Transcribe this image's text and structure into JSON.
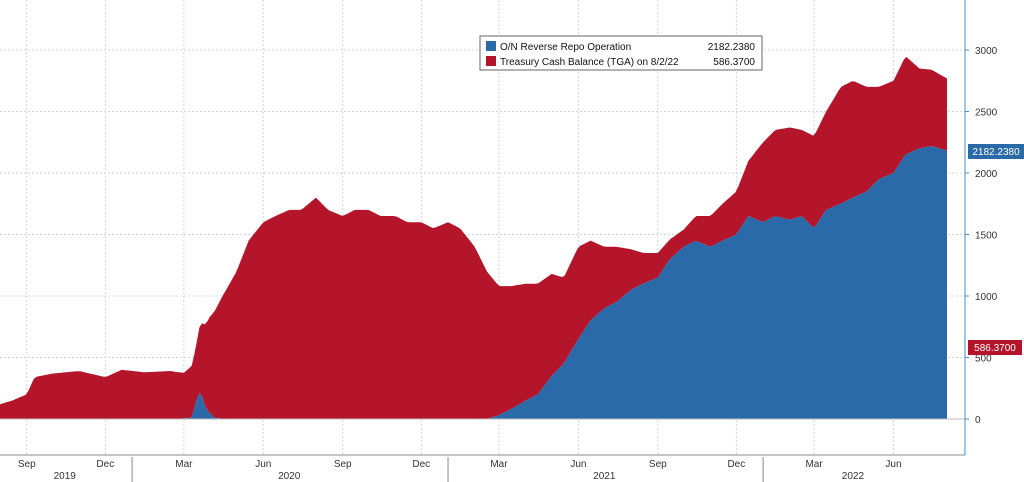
{
  "chart_data": {
    "type": "area",
    "x_axis": {
      "month_ticks": [
        "Sep",
        "Dec",
        "Mar",
        "Jun",
        "Sep",
        "Dec",
        "Mar",
        "Jun",
        "Sep",
        "Dec",
        "Mar",
        "Jun"
      ],
      "year_labels": [
        "2019",
        "2020",
        "2021",
        "2022"
      ]
    },
    "y_axis": {
      "min": 0,
      "max": 3400,
      "ticks": [
        0,
        500,
        1000,
        1500,
        2000,
        2500,
        3000
      ]
    },
    "grid": true,
    "legend_position": "top-right",
    "series": [
      {
        "name": "O/N Reverse Repo Operation",
        "legend_value": "2182.2380",
        "last_label": "2182.2380",
        "color": "#2a6aa8",
        "points": [
          [
            "2019-08-01",
            0
          ],
          [
            "2020-02-20",
            0
          ],
          [
            "2020-03-10",
            10
          ],
          [
            "2020-03-16",
            160
          ],
          [
            "2020-03-20",
            230
          ],
          [
            "2020-03-26",
            90
          ],
          [
            "2020-04-05",
            10
          ],
          [
            "2020-04-20",
            0
          ],
          [
            "2021-02-15",
            0
          ],
          [
            "2021-03-01",
            30
          ],
          [
            "2021-03-15",
            80
          ],
          [
            "2021-04-01",
            150
          ],
          [
            "2021-04-15",
            200
          ],
          [
            "2021-05-01",
            350
          ],
          [
            "2021-05-15",
            450
          ],
          [
            "2021-06-01",
            650
          ],
          [
            "2021-06-15",
            800
          ],
          [
            "2021-07-01",
            900
          ],
          [
            "2021-07-15",
            950
          ],
          [
            "2021-08-01",
            1050
          ],
          [
            "2021-08-15",
            1100
          ],
          [
            "2021-09-01",
            1150
          ],
          [
            "2021-09-15",
            1300
          ],
          [
            "2021-10-01",
            1400
          ],
          [
            "2021-10-15",
            1450
          ],
          [
            "2021-11-01",
            1400
          ],
          [
            "2021-11-15",
            1450
          ],
          [
            "2021-12-01",
            1500
          ],
          [
            "2021-12-15",
            1650
          ],
          [
            "2022-01-01",
            1600
          ],
          [
            "2022-01-15",
            1650
          ],
          [
            "2022-02-01",
            1620
          ],
          [
            "2022-02-15",
            1650
          ],
          [
            "2022-03-01",
            1550
          ],
          [
            "2022-03-15",
            1700
          ],
          [
            "2022-04-01",
            1750
          ],
          [
            "2022-04-15",
            1800
          ],
          [
            "2022-05-01",
            1850
          ],
          [
            "2022-05-15",
            1950
          ],
          [
            "2022-06-01",
            2000
          ],
          [
            "2022-06-15",
            2150
          ],
          [
            "2022-07-01",
            2200
          ],
          [
            "2022-07-15",
            2220
          ],
          [
            "2022-08-02",
            2182
          ]
        ]
      },
      {
        "name": "Treasury Cash Balance (TGA) on 8/2/22",
        "legend_value": "586.3700",
        "last_label": "586.3700",
        "color": "#b5152b",
        "points": [
          [
            "2019-08-01",
            120
          ],
          [
            "2019-08-15",
            150
          ],
          [
            "2019-09-01",
            200
          ],
          [
            "2019-09-10",
            340
          ],
          [
            "2019-10-01",
            370
          ],
          [
            "2019-11-01",
            390
          ],
          [
            "2019-12-01",
            340
          ],
          [
            "2019-12-20",
            400
          ],
          [
            "2020-01-15",
            380
          ],
          [
            "2020-02-15",
            390
          ],
          [
            "2020-03-01",
            370
          ],
          [
            "2020-03-15",
            450
          ],
          [
            "2020-04-01",
            800
          ],
          [
            "2020-04-15",
            1000
          ],
          [
            "2020-05-01",
            1200
          ],
          [
            "2020-05-15",
            1450
          ],
          [
            "2020-06-01",
            1600
          ],
          [
            "2020-06-15",
            1650
          ],
          [
            "2020-07-01",
            1700
          ],
          [
            "2020-07-15",
            1700
          ],
          [
            "2020-08-01",
            1800
          ],
          [
            "2020-08-15",
            1700
          ],
          [
            "2020-09-01",
            1650
          ],
          [
            "2020-09-15",
            1700
          ],
          [
            "2020-10-01",
            1700
          ],
          [
            "2020-10-15",
            1650
          ],
          [
            "2020-11-01",
            1650
          ],
          [
            "2020-11-15",
            1600
          ],
          [
            "2020-12-01",
            1600
          ],
          [
            "2020-12-15",
            1550
          ],
          [
            "2021-01-01",
            1600
          ],
          [
            "2021-01-15",
            1550
          ],
          [
            "2021-02-01",
            1400
          ],
          [
            "2021-02-15",
            1200
          ],
          [
            "2021-03-01",
            1050
          ],
          [
            "2021-03-15",
            1000
          ],
          [
            "2021-04-01",
            950
          ],
          [
            "2021-04-15",
            900
          ],
          [
            "2021-05-01",
            830
          ],
          [
            "2021-05-15",
            700
          ],
          [
            "2021-06-01",
            750
          ],
          [
            "2021-06-15",
            650
          ],
          [
            "2021-07-01",
            500
          ],
          [
            "2021-07-15",
            450
          ],
          [
            "2021-08-01",
            330
          ],
          [
            "2021-08-15",
            250
          ],
          [
            "2021-09-01",
            200
          ],
          [
            "2021-09-15",
            160
          ],
          [
            "2021-10-01",
            140
          ],
          [
            "2021-10-15",
            200
          ],
          [
            "2021-11-01",
            250
          ],
          [
            "2021-11-15",
            300
          ],
          [
            "2021-12-01",
            350
          ],
          [
            "2021-12-15",
            450
          ],
          [
            "2022-01-01",
            650
          ],
          [
            "2022-01-15",
            700
          ],
          [
            "2022-02-01",
            750
          ],
          [
            "2022-02-15",
            700
          ],
          [
            "2022-03-01",
            750
          ],
          [
            "2022-03-15",
            800
          ],
          [
            "2022-04-01",
            950
          ],
          [
            "2022-04-15",
            950
          ],
          [
            "2022-05-01",
            850
          ],
          [
            "2022-05-15",
            750
          ],
          [
            "2022-06-01",
            750
          ],
          [
            "2022-06-15",
            800
          ],
          [
            "2022-07-01",
            650
          ],
          [
            "2022-07-15",
            620
          ],
          [
            "2022-08-02",
            586
          ]
        ]
      }
    ]
  }
}
